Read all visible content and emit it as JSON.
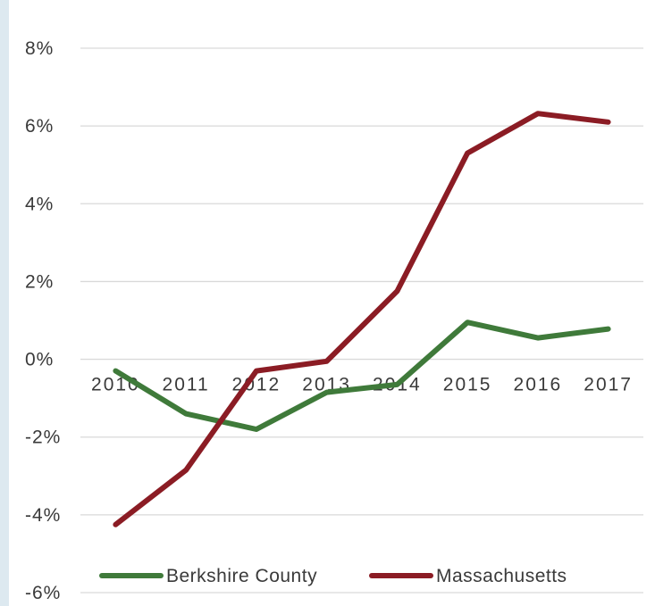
{
  "chart_data": {
    "type": "line",
    "categories": [
      "2010",
      "2011",
      "2012",
      "2013",
      "2014",
      "2015",
      "2016",
      "2017"
    ],
    "series": [
      {
        "name": "Berkshire County",
        "color": "#3f7a3a",
        "values": [
          -0.3,
          -1.4,
          -1.8,
          -0.85,
          -0.65,
          0.95,
          0.55,
          0.78
        ]
      },
      {
        "name": "Massachusetts",
        "color": "#8b1c24",
        "values": [
          -4.25,
          -2.85,
          -0.3,
          -0.05,
          1.75,
          5.3,
          6.32,
          6.1
        ]
      }
    ],
    "ylim": [
      -6,
      8
    ],
    "yticks": [
      8,
      6,
      4,
      2,
      0,
      -2,
      -4,
      -6
    ],
    "ytick_labels": [
      "8%",
      "6%",
      "4%",
      "2%",
      "0%",
      "-2%",
      "-4%",
      "-6%"
    ],
    "grid": true,
    "legend_position": "bottom"
  }
}
